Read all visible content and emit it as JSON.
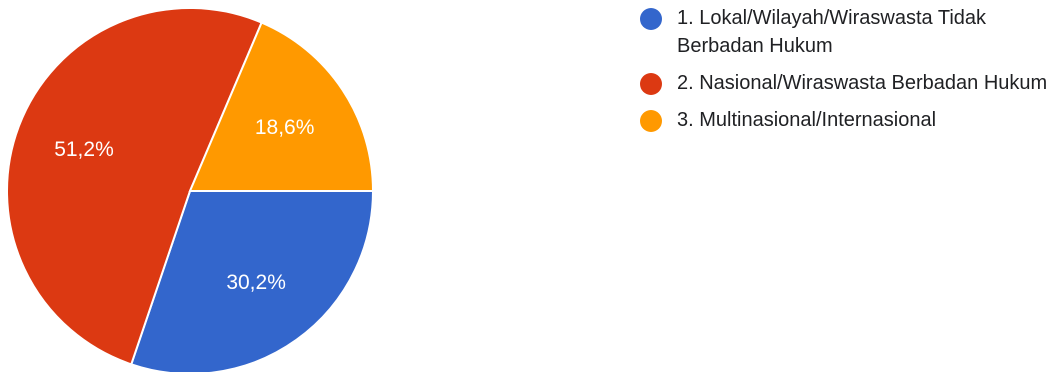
{
  "chart_data": {
    "type": "pie",
    "slices": [
      {
        "label": "1. Lokal/Wilayah/Wiraswasta Tidak Berbadan Hukum",
        "value": 30.2,
        "display": "30,2%",
        "color": "#3366cc"
      },
      {
        "label": "2. Nasional/Wiraswasta Berbadan Hukum",
        "value": 51.2,
        "display": "51,2%",
        "color": "#dc3912"
      },
      {
        "label": "3. Multinasional/Internasional",
        "value": 18.6,
        "display": "18,6%",
        "color": "#ff9900"
      }
    ],
    "legend_position": "right"
  }
}
